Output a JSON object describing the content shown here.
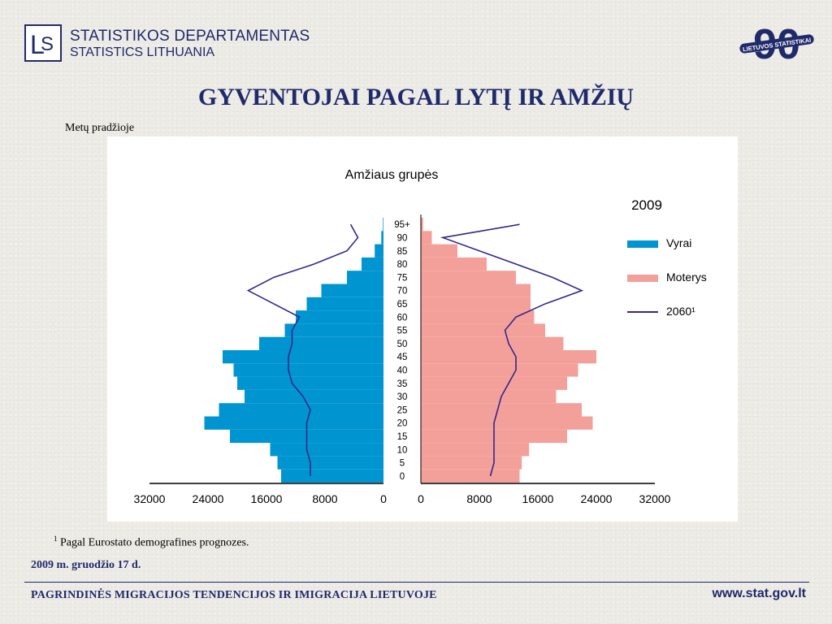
{
  "header": {
    "org_name_lt": "STATISTIKOS DEPARTAMENTAS",
    "org_name_en": "STATISTICS LITHUANIA",
    "anniversary_number": "90",
    "anniversary_text": "LIETUVOS STATISTIKAI"
  },
  "title": "GYVENTOJAI PAGAL LYTĮ IR AMŽIŲ",
  "subtitle": "Metų pradžioje",
  "chart_data": {
    "type": "bar",
    "orientation": "horizontal",
    "title": "Amžiaus grupės",
    "year_label": "2009",
    "age_ticks": [
      "0",
      "5",
      "10",
      "15",
      "20",
      "25",
      "30",
      "35",
      "40",
      "45",
      "50",
      "55",
      "60",
      "65",
      "70",
      "75",
      "80",
      "85",
      "90",
      "95+"
    ],
    "ages": [
      0,
      5,
      10,
      15,
      20,
      25,
      30,
      35,
      40,
      45,
      50,
      55,
      60,
      65,
      70,
      75,
      80,
      85,
      90,
      95
    ],
    "xlim_left": [
      0,
      32000
    ],
    "xlim_right": [
      0,
      32000
    ],
    "xticks_left": [
      "32000",
      "24000",
      "16000",
      "8000",
      "0"
    ],
    "xticks_right": [
      "0",
      "8000",
      "16000",
      "24000",
      "32000"
    ],
    "grid": false,
    "legend_position": "right",
    "series": [
      {
        "name": "Vyrai",
        "color": "#0095d1",
        "side": "left",
        "values": [
          14000,
          14500,
          15500,
          21000,
          24500,
          22500,
          19000,
          20000,
          20500,
          22000,
          17000,
          13500,
          12000,
          10500,
          8500,
          5000,
          3000,
          1200,
          300,
          80
        ]
      },
      {
        "name": "Moterys",
        "color": "#f4a09a",
        "side": "right",
        "values": [
          13500,
          13800,
          14800,
          20000,
          23500,
          22000,
          18500,
          20000,
          21500,
          24000,
          19500,
          17000,
          15500,
          15000,
          15000,
          13000,
          9000,
          5000,
          1500,
          300
        ]
      },
      {
        "name": "2060¹",
        "color": "#33268c",
        "type": "line",
        "left_values": [
          10000,
          10000,
          10500,
          10500,
          10500,
          10000,
          11000,
          12500,
          13000,
          13000,
          12500,
          12500,
          11500,
          15000,
          18500,
          15000,
          9500,
          5000,
          3500,
          4500
        ],
        "right_values": [
          9500,
          10000,
          10000,
          10000,
          10000,
          10500,
          11000,
          12000,
          13000,
          13000,
          12000,
          11500,
          13000,
          17000,
          22000,
          18000,
          13000,
          8000,
          3000,
          13500
        ]
      }
    ]
  },
  "footnote": {
    "mark": "1",
    "text": "Pagal Eurostato demografines prognozes."
  },
  "date": "2009 m. gruodžio 17 d.",
  "footer": {
    "left": "PAGRINDINĖS MIGRACIJOS TENDENCIJOS IR IMIGRACIJA LIETUVOJE",
    "right": "www.stat.gov.lt"
  }
}
